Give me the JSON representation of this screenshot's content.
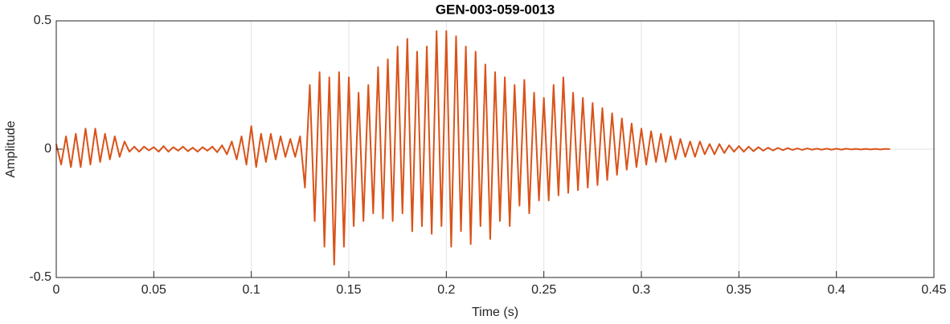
{
  "chart_data": {
    "type": "line",
    "title": "GEN-003-059-0013",
    "x_label": "Time (s)",
    "y_label": "Amplitude",
    "xlim": [
      0,
      0.45
    ],
    "xticks": [
      0,
      0.05,
      0.1,
      0.15,
      0.2,
      0.25,
      0.3,
      0.35,
      0.4,
      0.45
    ],
    "ylim": [
      -0.5,
      0.5
    ],
    "yticks": [
      -0.5,
      0,
      0.5
    ],
    "grid": true,
    "x": [
      0,
      0.0025,
      0.005,
      0.0075,
      0.01,
      0.0125,
      0.015,
      0.0175,
      0.02,
      0.0225,
      0.025,
      0.0275,
      0.03,
      0.0325,
      0.035,
      0.0375,
      0.04,
      0.0425,
      0.045,
      0.0475,
      0.05,
      0.0525,
      0.055,
      0.0575,
      0.06,
      0.0625,
      0.065,
      0.0675,
      0.07,
      0.0725,
      0.075,
      0.0775,
      0.08,
      0.0825,
      0.085,
      0.0875,
      0.09,
      0.0925,
      0.095,
      0.0975,
      0.1,
      0.1025,
      0.105,
      0.1075,
      0.11,
      0.1125,
      0.115,
      0.1175,
      0.12,
      0.1225,
      0.125,
      0.1275,
      0.13,
      0.1325,
      0.135,
      0.1375,
      0.14,
      0.1425,
      0.145,
      0.1475,
      0.15,
      0.1525,
      0.155,
      0.1575,
      0.16,
      0.1625,
      0.165,
      0.1675,
      0.17,
      0.1725,
      0.175,
      0.1775,
      0.18,
      0.1825,
      0.185,
      0.1875,
      0.19,
      0.1925,
      0.195,
      0.1975,
      0.2,
      0.2025,
      0.205,
      0.2075,
      0.21,
      0.2125,
      0.215,
      0.2175,
      0.22,
      0.2225,
      0.225,
      0.2275,
      0.23,
      0.2325,
      0.235,
      0.2375,
      0.24,
      0.2425,
      0.245,
      0.2475,
      0.25,
      0.2525,
      0.255,
      0.2575,
      0.26,
      0.2625,
      0.265,
      0.2675,
      0.27,
      0.2725,
      0.275,
      0.2775,
      0.28,
      0.2825,
      0.285,
      0.2875,
      0.29,
      0.2925,
      0.295,
      0.2975,
      0.3,
      0.3025,
      0.305,
      0.3075,
      0.31,
      0.3125,
      0.315,
      0.3175,
      0.32,
      0.3225,
      0.325,
      0.3275,
      0.33,
      0.3325,
      0.335,
      0.3375,
      0.34,
      0.3425,
      0.345,
      0.3475,
      0.35,
      0.3525,
      0.355,
      0.3575,
      0.36,
      0.3625,
      0.365,
      0.3675,
      0.37,
      0.3725,
      0.375,
      0.3775,
      0.38,
      0.3825,
      0.385,
      0.3875,
      0.39,
      0.3925,
      0.395,
      0.3975,
      0.4,
      0.4025,
      0.405,
      0.4075,
      0.41,
      0.4125,
      0.415,
      0.4175,
      0.42,
      0.4225,
      0.425,
      0.4275
    ],
    "series": [
      {
        "color": "#D95319",
        "values": [
          0.02,
          -0.06,
          0.05,
          -0.07,
          0.06,
          -0.07,
          0.08,
          -0.06,
          0.08,
          -0.05,
          0.06,
          -0.04,
          0.05,
          -0.03,
          0.03,
          -0.01,
          0.01,
          -0.01,
          0.01,
          -0.005,
          0.008,
          -0.01,
          0.012,
          -0.01,
          0.008,
          -0.006,
          0.01,
          -0.008,
          0.006,
          -0.01,
          0.008,
          -0.006,
          0.01,
          -0.012,
          0.015,
          -0.02,
          0.03,
          -0.04,
          0.05,
          -0.06,
          0.09,
          -0.07,
          0.06,
          -0.05,
          0.06,
          -0.04,
          0.05,
          -0.03,
          0.04,
          -0.03,
          0.05,
          -0.15,
          0.25,
          -0.28,
          0.3,
          -0.38,
          0.28,
          -0.45,
          0.3,
          -0.38,
          0.28,
          -0.3,
          0.22,
          -0.28,
          0.25,
          -0.25,
          0.32,
          -0.27,
          0.35,
          -0.28,
          0.4,
          -0.25,
          0.43,
          -0.32,
          0.38,
          -0.3,
          0.4,
          -0.33,
          0.46,
          -0.3,
          0.46,
          -0.38,
          0.44,
          -0.32,
          0.4,
          -0.37,
          0.38,
          -0.3,
          0.33,
          -0.35,
          0.3,
          -0.28,
          0.28,
          -0.3,
          0.25,
          -0.22,
          0.27,
          -0.25,
          0.22,
          -0.2,
          0.2,
          -0.2,
          0.25,
          -0.18,
          0.28,
          -0.17,
          0.22,
          -0.16,
          0.2,
          -0.15,
          0.18,
          -0.14,
          0.16,
          -0.12,
          0.14,
          -0.1,
          0.12,
          -0.08,
          0.1,
          -0.07,
          0.08,
          -0.06,
          0.07,
          -0.05,
          0.06,
          -0.05,
          0.05,
          -0.04,
          0.04,
          -0.03,
          0.03,
          -0.03,
          0.03,
          -0.02,
          0.02,
          -0.02,
          0.02,
          -0.015,
          0.015,
          -0.01,
          0.012,
          -0.01,
          0.01,
          -0.008,
          0.008,
          -0.006,
          0.006,
          -0.005,
          0.005,
          -0.004,
          0.004,
          -0.003,
          0.003,
          -0.003,
          0.003,
          -0.002,
          0.002,
          -0.002,
          0.002,
          -0.002,
          0.002,
          -0.002,
          0.002,
          -0.001,
          0.001,
          -0.001,
          0.001,
          -0.001,
          0.001,
          -0.001,
          0.001,
          0
        ]
      }
    ]
  }
}
